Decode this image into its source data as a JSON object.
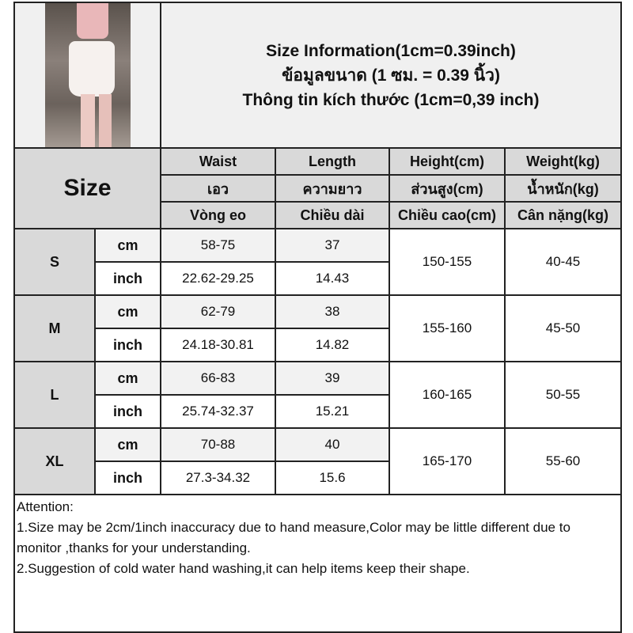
{
  "header": {
    "title_en": "Size Information(1cm=0.39inch)",
    "title_th": "ข้อมูลขนาด (1 ซม. = 0.39 นิ้ว)",
    "title_vi": "Thông tin kích thước (1cm=0,39 inch)"
  },
  "size_label": "Size",
  "columns": [
    {
      "en": "Waist",
      "th": "เอว",
      "vi": "Vòng eo"
    },
    {
      "en": "Length",
      "th": "ความยาว",
      "vi": "Chiều dài"
    },
    {
      "en": "Height(cm)",
      "th": "ส่วนสูง(cm)",
      "vi": "Chiều cao(cm)"
    },
    {
      "en": "Weight(kg)",
      "th": "น้ำหนัก(kg)",
      "vi": "Cân nặng(kg)"
    }
  ],
  "units": {
    "cm": "cm",
    "inch": "inch"
  },
  "rows": [
    {
      "size": "S",
      "waist_cm": "58-75",
      "length_cm": "37",
      "waist_in": "22.62-29.25",
      "length_in": "14.43",
      "height": "150-155",
      "weight": "40-45"
    },
    {
      "size": "M",
      "waist_cm": "62-79",
      "length_cm": "38",
      "waist_in": "24.18-30.81",
      "length_in": "14.82",
      "height": "155-160",
      "weight": "45-50"
    },
    {
      "size": "L",
      "waist_cm": "66-83",
      "length_cm": "39",
      "waist_in": "25.74-32.37",
      "length_in": "15.21",
      "height": "160-165",
      "weight": "50-55"
    },
    {
      "size": "XL",
      "waist_cm": "70-88",
      "length_cm": "40",
      "waist_in": "27.3-34.32",
      "length_in": "15.6",
      "height": "165-170",
      "weight": "55-60"
    }
  ],
  "attention": {
    "title": "Attention:",
    "line1": "1.Size may be 2cm/1inch inaccuracy due to hand measure,Color may be little different due to monitor ,thanks for your understanding.",
    "line2": "2.Suggestion of cold water hand washing,it can help items keep their shape."
  }
}
